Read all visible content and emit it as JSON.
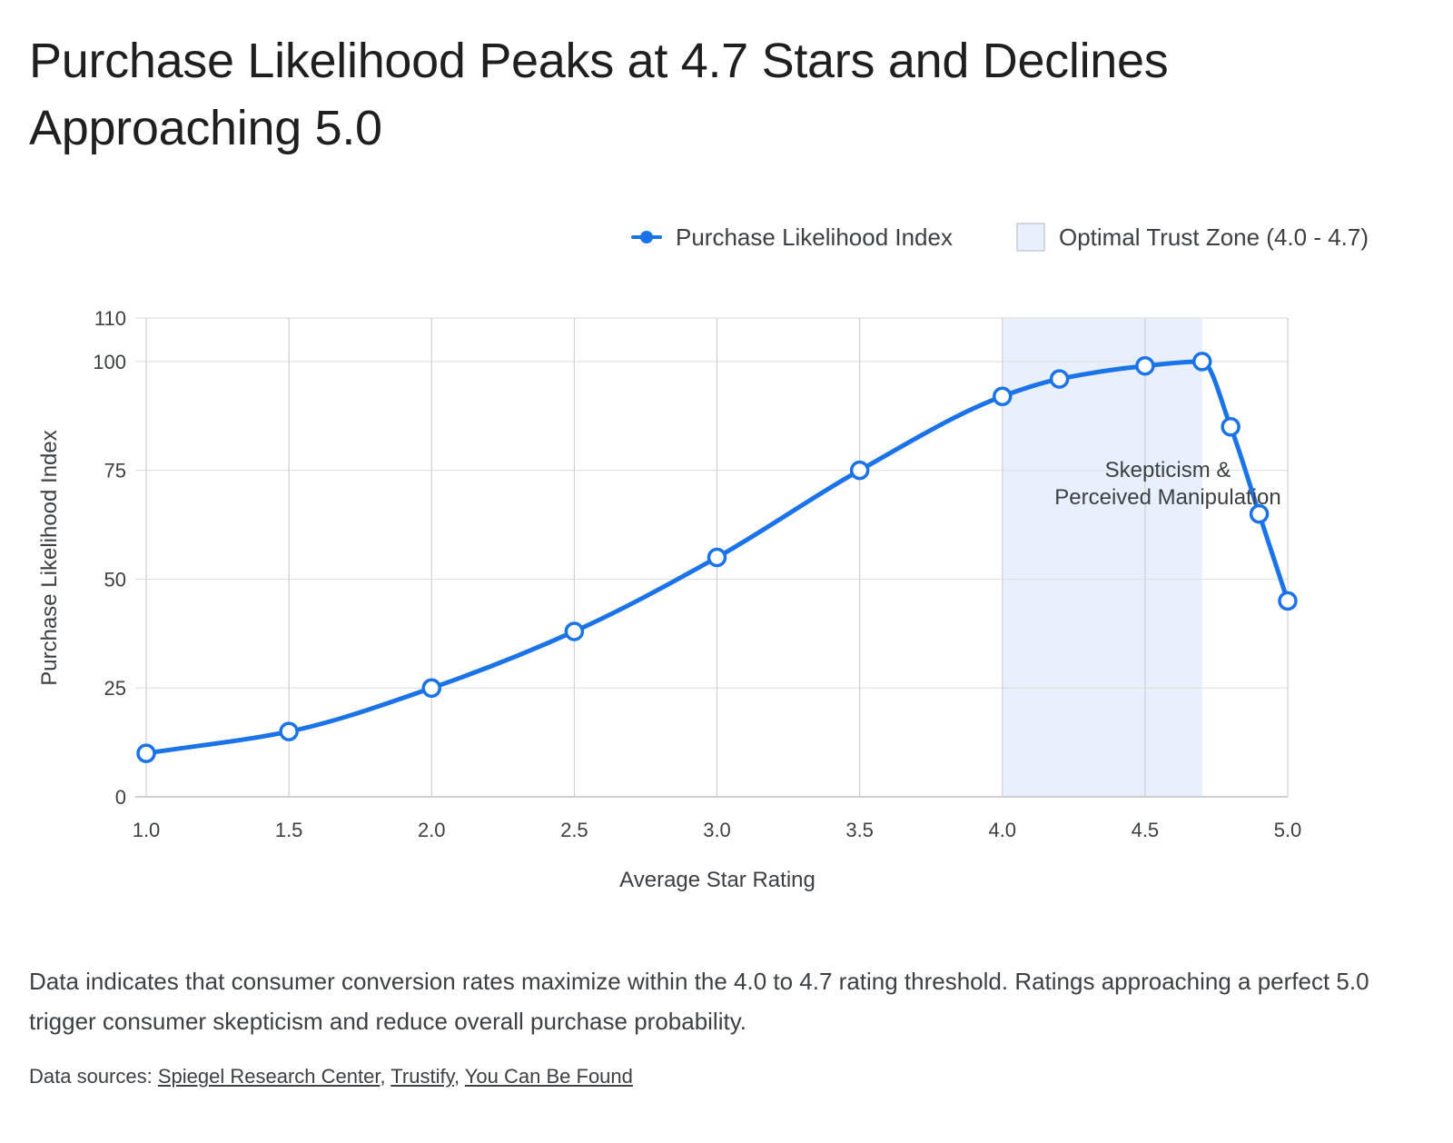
{
  "page": {
    "title": "Purchase Likelihood Peaks at 4.7 Stars and Declines Approaching 5.0",
    "caption": "Data indicates that consumer conversion rates maximize within the 4.0 to 4.7 rating threshold. Ratings approaching a perfect 5.0 trigger consumer skepticism and reduce overall purchase probability.",
    "sources_label": "Data sources:",
    "sources": [
      "Spiegel Research Center",
      "Trustify",
      "You Can Be Found"
    ]
  },
  "chart_data": {
    "type": "line",
    "title": "Purchase Likelihood Peaks at 4.7 Stars and Declines Approaching 5.0",
    "xlabel": "Average Star Rating",
    "ylabel": "Purchase Likelihood Index",
    "xlim": [
      1.0,
      5.0
    ],
    "ylim": [
      0,
      110
    ],
    "x_ticks": [
      "1.0",
      "1.5",
      "2.0",
      "2.5",
      "3.0",
      "3.5",
      "4.0",
      "4.5",
      "5.0"
    ],
    "y_ticks": [
      0,
      25,
      50,
      75,
      100,
      110
    ],
    "grid": true,
    "legend_position": "top-right",
    "series": [
      {
        "name": "Purchase Likelihood Index",
        "color": "#1a73e8",
        "x": [
          1.0,
          1.5,
          2.0,
          2.5,
          3.0,
          3.5,
          4.0,
          4.2,
          4.5,
          4.7,
          4.8,
          4.9,
          5.0
        ],
        "values": [
          10,
          15,
          25,
          38,
          55,
          75,
          92,
          96,
          99,
          100,
          85,
          65,
          45
        ]
      }
    ],
    "bands": [
      {
        "name": "Optimal Trust Zone (4.0 - 4.7)",
        "x_start": 4.0,
        "x_end": 4.7,
        "color": "#e8f0fe"
      }
    ],
    "annotations": [
      {
        "text_lines": [
          "Skepticism &",
          "Perceived Manipulation"
        ],
        "x": 4.58,
        "y": 73.5
      }
    ]
  }
}
